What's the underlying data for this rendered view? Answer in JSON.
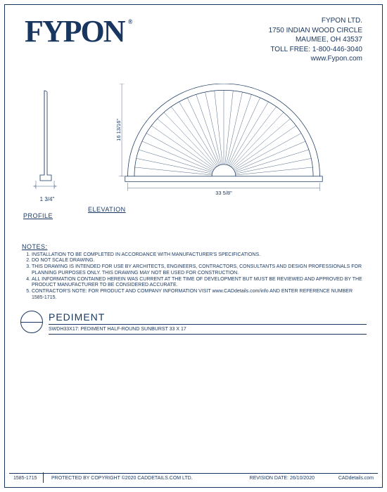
{
  "logo_text": "FYPON",
  "company": {
    "name": "FYPON LTD.",
    "addr1": "1750 INDIAN WOOD CIRCLE",
    "addr2": "MAUMEE, OH 43537",
    "toll": "TOLL FREE: 1-800-446-3040",
    "web": "www.Fypon.com"
  },
  "dims": {
    "height": "16 13/16\"",
    "width": "33 5/8\"",
    "depth": "1 3/4\""
  },
  "labels": {
    "profile": "PROFILE",
    "elevation": "ELEVATION"
  },
  "notes_header": "NOTES:",
  "notes": [
    "INSTALLATION TO BE COMPLETED IN ACCORDANCE WITH MANUFACTURER'S SPECIFICATIONS.",
    "DO NOT SCALE DRAWING.",
    "THIS DRAWING IS INTENDED FOR USE BY ARCHITECTS, ENGINEERS, CONTRACTORS, CONSULTANTS AND DESIGN PROFESSIONALS FOR PLANNING PURPOSES ONLY. THIS DRAWING MAY NOT BE USED FOR CONSTRUCTION.",
    "ALL INFORMATION CONTAINED HEREIN WAS CURRENT AT THE TIME OF DEVELOPMENT BUT MUST BE REVIEWED AND APPROVED BY THE PRODUCT MANUFACTURER TO BE CONSIDERED ACCURATE.",
    "CONTRACTOR'S NOTE: FOR PRODUCT AND COMPANY INFORMATION VISIT www.CADdetails.com/info AND ENTER REFERENCE NUMBER 1585-1715."
  ],
  "title": {
    "main": "PEDIMENT",
    "sub": "SWDH33X17: PEDIMENT HALF-ROUND SUNBURST 33 X 17"
  },
  "footer": {
    "ref": "1585-1715",
    "copyright": "PROTECTED BY COPYRIGHT ©2020 CADDETAILS.COM LTD.",
    "revision": "REVISION DATE: 26/10/2020",
    "site": "CADdetails.com"
  },
  "style": {
    "stroke": "#18365f",
    "sunburst_rays": 30,
    "arc_outer_r": 145,
    "arc_inner_r": 135,
    "hub_r": 18
  }
}
